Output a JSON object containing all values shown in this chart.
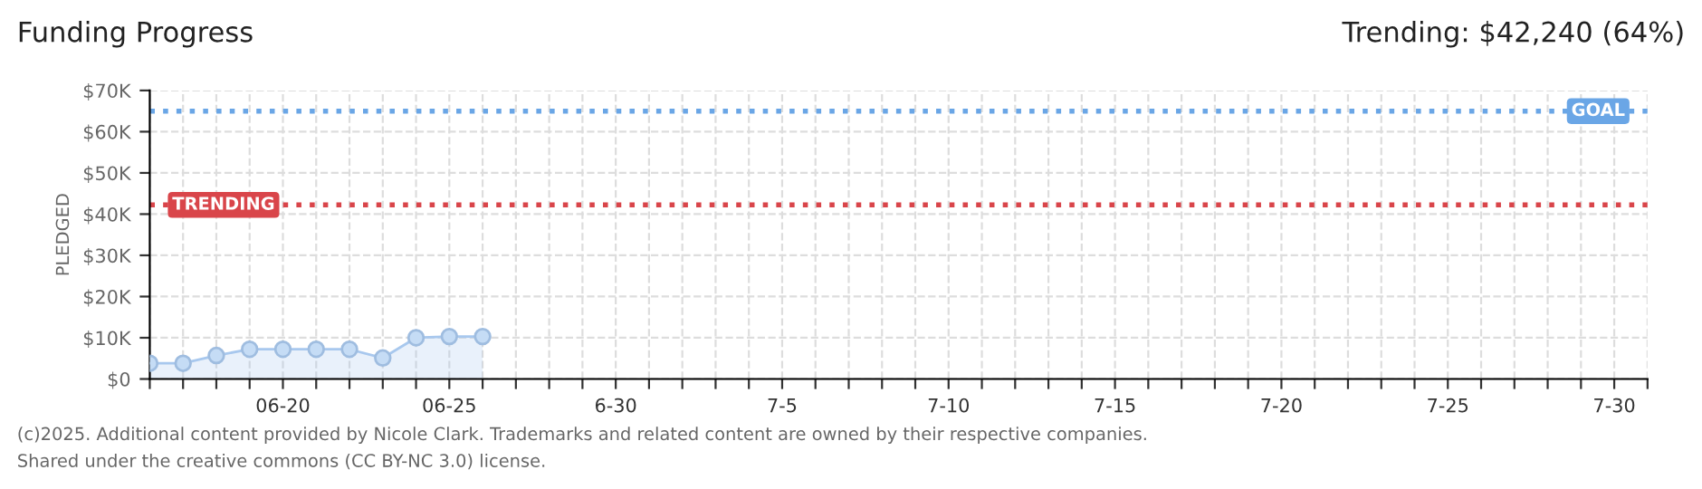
{
  "chart_data": {
    "type": "area",
    "title": "Funding Progress",
    "ylabel": "PLEDGED",
    "annotations": [
      "Trending: $42,240 (64%)",
      "(c)2025. Additional content provided by Nicole Clark. Trademarks and related content are owned by their respective companies.",
      "Shared under the creative commons (CC BY-NC 3.0) license."
    ],
    "x": [
      "2025-06-16",
      "2025-06-17",
      "2025-06-18",
      "2025-06-19",
      "2025-06-20",
      "2025-06-21",
      "2025-06-22",
      "2025-06-23",
      "2025-06-24",
      "2025-06-25",
      "2025-06-26"
    ],
    "series": [
      {
        "color": "#a8c8ee",
        "values": [
          3800,
          3800,
          5700,
          7200,
          7200,
          7200,
          7200,
          5100,
          10000,
          10300,
          10300
        ]
      }
    ],
    "xlim": [
      "2025-06-16",
      "2025-07-31"
    ],
    "xticks": [
      {
        "value": "2025-06-16",
        "label": null
      },
      {
        "value": "2025-06-17",
        "label": null
      },
      {
        "value": "2025-06-18",
        "label": null
      },
      {
        "value": "2025-06-19",
        "label": null
      },
      {
        "value": "2025-06-20",
        "label": "06-20"
      },
      {
        "value": "2025-06-21",
        "label": null
      },
      {
        "value": "2025-06-22",
        "label": null
      },
      {
        "value": "2025-06-23",
        "label": null
      },
      {
        "value": "2025-06-24",
        "label": null
      },
      {
        "value": "2025-06-25",
        "label": "06-25"
      },
      {
        "value": "2025-06-26",
        "label": null
      },
      {
        "value": "2025-06-27",
        "label": null
      },
      {
        "value": "2025-06-28",
        "label": null
      },
      {
        "value": "2025-06-29",
        "label": null
      },
      {
        "value": "2025-06-30",
        "label": "6-30"
      },
      {
        "value": "2025-07-01",
        "label": null
      },
      {
        "value": "2025-07-02",
        "label": null
      },
      {
        "value": "2025-07-03",
        "label": null
      },
      {
        "value": "2025-07-04",
        "label": null
      },
      {
        "value": "2025-07-05",
        "label": "7-5"
      },
      {
        "value": "2025-07-06",
        "label": null
      },
      {
        "value": "2025-07-07",
        "label": null
      },
      {
        "value": "2025-07-08",
        "label": null
      },
      {
        "value": "2025-07-09",
        "label": null
      },
      {
        "value": "2025-07-10",
        "label": "7-10"
      },
      {
        "value": "2025-07-11",
        "label": null
      },
      {
        "value": "2025-07-12",
        "label": null
      },
      {
        "value": "2025-07-13",
        "label": null
      },
      {
        "value": "2025-07-14",
        "label": null
      },
      {
        "value": "2025-07-15",
        "label": "7-15"
      },
      {
        "value": "2025-07-16",
        "label": null
      },
      {
        "value": "2025-07-17",
        "label": null
      },
      {
        "value": "2025-07-18",
        "label": null
      },
      {
        "value": "2025-07-19",
        "label": null
      },
      {
        "value": "2025-07-20",
        "label": "7-20"
      },
      {
        "value": "2025-07-21",
        "label": null
      },
      {
        "value": "2025-07-22",
        "label": null
      },
      {
        "value": "2025-07-23",
        "label": null
      },
      {
        "value": "2025-07-24",
        "label": null
      },
      {
        "value": "2025-07-25",
        "label": "7-25"
      },
      {
        "value": "2025-07-26",
        "label": null
      },
      {
        "value": "2025-07-27",
        "label": null
      },
      {
        "value": "2025-07-28",
        "label": null
      },
      {
        "value": "2025-07-29",
        "label": null
      },
      {
        "value": "2025-07-30",
        "label": "7-30"
      },
      {
        "value": "2025-07-31",
        "label": null
      }
    ],
    "ylim": [
      0,
      70000
    ],
    "yticks": [
      {
        "value": 0,
        "label": "$0"
      },
      {
        "value": 10000,
        "label": "$10K"
      },
      {
        "value": 20000,
        "label": "$20K"
      },
      {
        "value": 30000,
        "label": "$30K"
      },
      {
        "value": 40000,
        "label": "$40K"
      },
      {
        "value": 50000,
        "label": "$50K"
      },
      {
        "value": 60000,
        "label": "$60K"
      },
      {
        "value": 70000,
        "label": "$70K"
      }
    ],
    "ref_lines": [
      {
        "axis": "y",
        "value": 65000,
        "label": "GOAL",
        "color": "#6aa6e6",
        "line_style": "dotted"
      },
      {
        "axis": "y",
        "value": 42240,
        "label": "TRENDING",
        "color": "#d9454a",
        "line_style": "dotted"
      }
    ],
    "grid": true,
    "marker": "circle",
    "line_style": "solid",
    "legend": false
  }
}
